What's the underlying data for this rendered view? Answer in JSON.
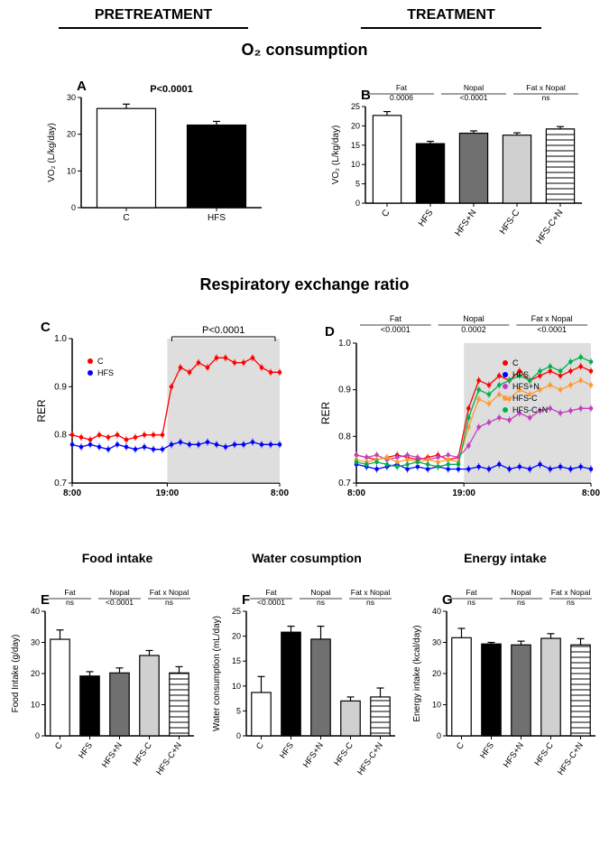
{
  "headers": {
    "pretreatment": "PRETREATMENT",
    "treatment": "TREATMENT"
  },
  "titles": {
    "o2": "O₂ consumption",
    "rer": "Respiratory exchange ratio",
    "food": "Food intake",
    "water": "Water cosumption",
    "energy": "Energy intake"
  },
  "panelA": {
    "letter": "A",
    "ylabel": "VO₂ (L/kg/day)",
    "pvalue": "P<0.0001",
    "ylim": [
      0,
      30
    ],
    "ytick": 10,
    "cats": [
      "C",
      "HFS"
    ],
    "vals": [
      27,
      22.5
    ],
    "errs": [
      1.2,
      1.0
    ],
    "fills": [
      "#ffffff",
      "#000000"
    ]
  },
  "panelB": {
    "letter": "B",
    "ylabel": "VO₂ (L/kg/day)",
    "ylim": [
      0,
      25
    ],
    "ytick": 5,
    "factors": [
      "Fat",
      "Nopal",
      "Fat x Nopal"
    ],
    "pvals": [
      "0.0006",
      "<0.0001",
      "ns"
    ],
    "cats": [
      "C",
      "HFS",
      "HFS+N",
      "HFS-C",
      "HFS-C+N"
    ],
    "vals": [
      22.7,
      15.4,
      18.1,
      17.6,
      19.2
    ],
    "errs": [
      1.0,
      0.6,
      0.6,
      0.6,
      0.6
    ],
    "fills": [
      "#ffffff",
      "#000000",
      "#707070",
      "#d0d0d0",
      "hatch"
    ]
  },
  "panelC": {
    "letter": "C",
    "ylabel": "RER",
    "pvalue": "P<0.0001",
    "ylim": [
      0.7,
      1.0
    ],
    "ytick": 0.1,
    "xticks": [
      "8:00",
      "19:00",
      "8:00"
    ],
    "series": [
      {
        "name": "C",
        "color": "#ff0000",
        "day": [
          0.8,
          0.795,
          0.79,
          0.8,
          0.795,
          0.8,
          0.79,
          0.795,
          0.8,
          0.8,
          0.8
        ],
        "night": [
          0.9,
          0.94,
          0.93,
          0.95,
          0.94,
          0.96,
          0.96,
          0.95,
          0.95,
          0.96,
          0.94,
          0.93,
          0.93
        ]
      },
      {
        "name": "HFS",
        "color": "#0000ff",
        "day": [
          0.78,
          0.775,
          0.78,
          0.775,
          0.77,
          0.78,
          0.775,
          0.77,
          0.775,
          0.77,
          0.77
        ],
        "night": [
          0.78,
          0.785,
          0.78,
          0.78,
          0.785,
          0.78,
          0.775,
          0.78,
          0.78,
          0.785,
          0.78,
          0.78,
          0.78
        ]
      }
    ]
  },
  "panelD": {
    "letter": "D",
    "ylabel": "RER",
    "ylim": [
      0.7,
      1.0
    ],
    "ytick": 0.1,
    "xticks": [
      "8:00",
      "19:00",
      "8:00"
    ],
    "factors": [
      "Fat",
      "Nopal",
      "Fat x Nopal"
    ],
    "pvals": [
      "<0.0001",
      "0.0002",
      "<0.0001"
    ],
    "series": [
      {
        "name": "C",
        "color": "#ff0000",
        "day": [
          0.76,
          0.755,
          0.75,
          0.755,
          0.76,
          0.755,
          0.75,
          0.755,
          0.76,
          0.75,
          0.755
        ],
        "night": [
          0.86,
          0.92,
          0.91,
          0.93,
          0.92,
          0.94,
          0.92,
          0.93,
          0.94,
          0.93,
          0.94,
          0.95,
          0.94
        ]
      },
      {
        "name": "HFS",
        "color": "#0000ff",
        "day": [
          0.74,
          0.735,
          0.73,
          0.735,
          0.74,
          0.73,
          0.735,
          0.73,
          0.735,
          0.73,
          0.73
        ],
        "night": [
          0.73,
          0.735,
          0.73,
          0.74,
          0.73,
          0.735,
          0.73,
          0.74,
          0.73,
          0.735,
          0.73,
          0.735,
          0.73
        ]
      },
      {
        "name": "HFS+N",
        "color": "#c040c0",
        "day": [
          0.76,
          0.755,
          0.76,
          0.75,
          0.755,
          0.76,
          0.755,
          0.75,
          0.755,
          0.76,
          0.755
        ],
        "night": [
          0.78,
          0.82,
          0.83,
          0.84,
          0.835,
          0.85,
          0.84,
          0.855,
          0.86,
          0.85,
          0.855,
          0.86,
          0.86
        ]
      },
      {
        "name": "HFS-C",
        "color": "#ff9933",
        "day": [
          0.75,
          0.745,
          0.75,
          0.755,
          0.745,
          0.75,
          0.745,
          0.75,
          0.745,
          0.75,
          0.745
        ],
        "night": [
          0.82,
          0.88,
          0.87,
          0.89,
          0.88,
          0.9,
          0.89,
          0.9,
          0.91,
          0.9,
          0.91,
          0.92,
          0.91
        ]
      },
      {
        "name": "HFS-C+N",
        "color": "#00b050",
        "day": [
          0.745,
          0.74,
          0.745,
          0.74,
          0.735,
          0.74,
          0.745,
          0.74,
          0.735,
          0.74,
          0.74
        ],
        "night": [
          0.84,
          0.9,
          0.89,
          0.91,
          0.92,
          0.93,
          0.92,
          0.94,
          0.95,
          0.94,
          0.96,
          0.97,
          0.96
        ]
      }
    ]
  },
  "panelE": {
    "letter": "E",
    "ylabel": "Food Intake (g/day)",
    "ylim": [
      0,
      40
    ],
    "ytick": 10,
    "factors": [
      "Fat",
      "Nopal",
      "Fat x Nopal"
    ],
    "pvals": [
      "ns",
      "<0.0001",
      "ns"
    ],
    "cats": [
      "C",
      "HFS",
      "HFS+N",
      "HFS-C",
      "HFS-C+N"
    ],
    "vals": [
      31,
      19.2,
      20.2,
      25.8,
      20.2
    ],
    "errs": [
      3.0,
      1.4,
      1.6,
      1.6,
      2.0
    ],
    "fills": [
      "#ffffff",
      "#000000",
      "#707070",
      "#d0d0d0",
      "hatch"
    ]
  },
  "panelF": {
    "letter": "F",
    "ylabel": "Water consumption (mL/day)",
    "ylim": [
      0,
      25
    ],
    "ytick": 5,
    "factors": [
      "Fat",
      "Nopal",
      "Fat x Nopal"
    ],
    "pvals": [
      "<0.0001",
      "ns",
      "ns"
    ],
    "cats": [
      "C",
      "HFS",
      "HFS+N",
      "HFS-C",
      "HFS-C+N"
    ],
    "vals": [
      8.7,
      20.8,
      19.4,
      7.0,
      7.8
    ],
    "errs": [
      3.2,
      1.2,
      2.6,
      0.8,
      1.8
    ],
    "fills": [
      "#ffffff",
      "#000000",
      "#707070",
      "#d0d0d0",
      "hatch"
    ]
  },
  "panelG": {
    "letter": "G",
    "ylabel": "Energy intake (kcal/day)",
    "ylim": [
      0,
      40
    ],
    "ytick": 10,
    "factors": [
      "Fat",
      "Nopal",
      "Fat x Nopal"
    ],
    "pvals": [
      "ns",
      "ns",
      "ns"
    ],
    "cats": [
      "C",
      "HFS",
      "HFS+N",
      "HFS-C",
      "HFS-C+N"
    ],
    "vals": [
      31.5,
      29.5,
      29.2,
      31.3,
      29.2
    ],
    "errs": [
      3.0,
      0.5,
      1.2,
      1.5,
      2.0
    ],
    "fills": [
      "#ffffff",
      "#000000",
      "#707070",
      "#d0d0d0",
      "hatch"
    ]
  }
}
